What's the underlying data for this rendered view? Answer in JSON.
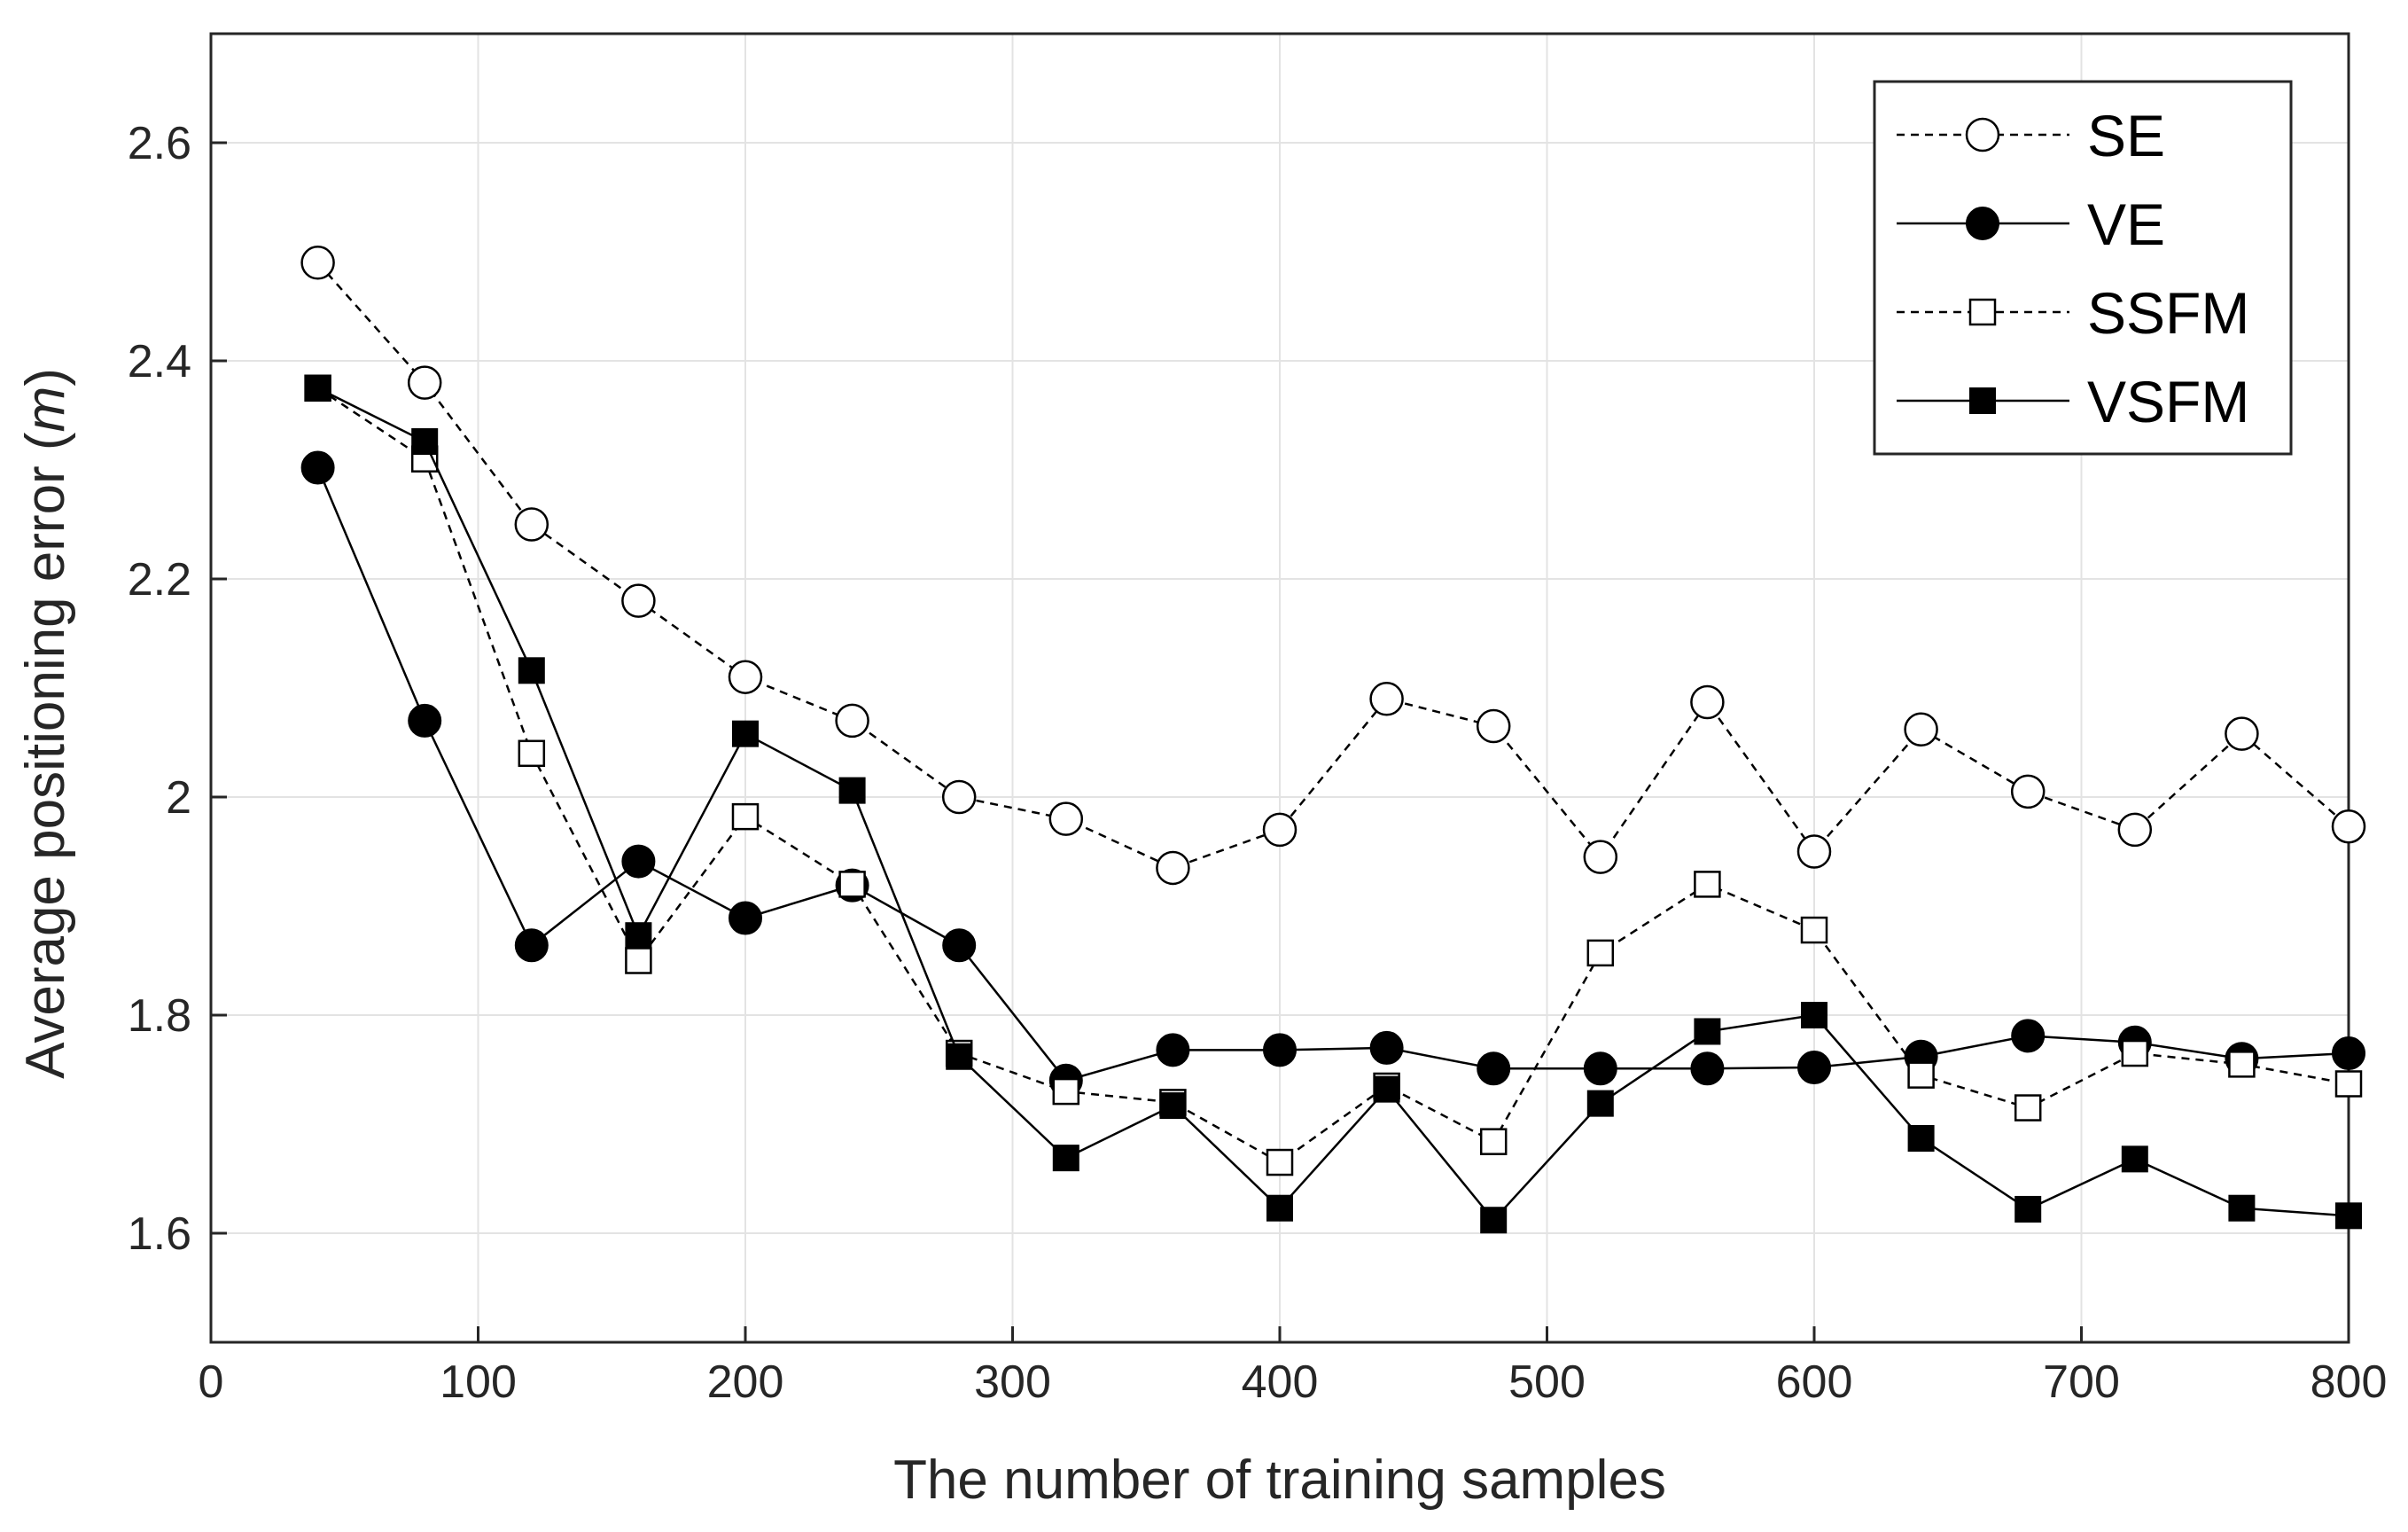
{
  "chart_data": {
    "type": "line",
    "title": "",
    "xlabel": "The number of training samples",
    "ylabel": {
      "prefix": "Average positioning error (",
      "unit": "m",
      "suffix": ")"
    },
    "xlim": [
      0,
      800
    ],
    "ylim": [
      1.5,
      2.7
    ],
    "xticks": [
      0,
      100,
      200,
      300,
      400,
      500,
      600,
      700,
      800
    ],
    "xtick_labels": [
      "0",
      "100",
      "200",
      "300",
      "400",
      "500",
      "600",
      "700",
      "800"
    ],
    "yticks": [
      1.6,
      1.8,
      2.0,
      2.2,
      2.4,
      2.6
    ],
    "ytick_labels": [
      "1.6",
      "1.8",
      "2",
      "2.2",
      "2.4",
      "2.6"
    ],
    "grid": true,
    "legend_position": "top-right",
    "x": [
      40,
      80,
      120,
      160,
      200,
      240,
      280,
      320,
      360,
      400,
      440,
      480,
      520,
      560,
      600,
      640,
      680,
      720,
      760,
      800
    ],
    "series": [
      {
        "name": "SE",
        "line": "dashed",
        "marker": "circle",
        "filled": false,
        "values": [
          2.49,
          2.38,
          2.25,
          2.18,
          2.11,
          2.07,
          2.0,
          1.98,
          1.935,
          1.97,
          2.09,
          2.065,
          1.945,
          2.087,
          1.95,
          2.062,
          2.005,
          1.97,
          2.058,
          1.973
        ]
      },
      {
        "name": "VE",
        "line": "solid",
        "marker": "circle",
        "filled": true,
        "values": [
          2.302,
          2.07,
          1.864,
          1.941,
          1.889,
          1.919,
          1.864,
          1.74,
          1.768,
          1.768,
          1.77,
          1.751,
          1.751,
          1.751,
          1.752,
          1.762,
          1.781,
          1.775,
          1.76,
          1.765
        ]
      },
      {
        "name": "SSFM",
        "line": "dashed",
        "marker": "square",
        "filled": false,
        "values": [
          2.375,
          2.31,
          2.04,
          1.85,
          1.982,
          1.92,
          1.765,
          1.73,
          1.72,
          1.665,
          1.735,
          1.684,
          1.857,
          1.92,
          1.878,
          1.745,
          1.715,
          1.765,
          1.755,
          1.737
        ]
      },
      {
        "name": "VSFM",
        "line": "solid",
        "marker": "square",
        "filled": true,
        "values": [
          2.375,
          2.326,
          2.116,
          1.873,
          2.058,
          2.006,
          1.762,
          1.669,
          1.717,
          1.623,
          1.732,
          1.612,
          1.719,
          1.785,
          1.8,
          1.687,
          1.622,
          1.668,
          1.623,
          1.616
        ]
      }
    ]
  }
}
